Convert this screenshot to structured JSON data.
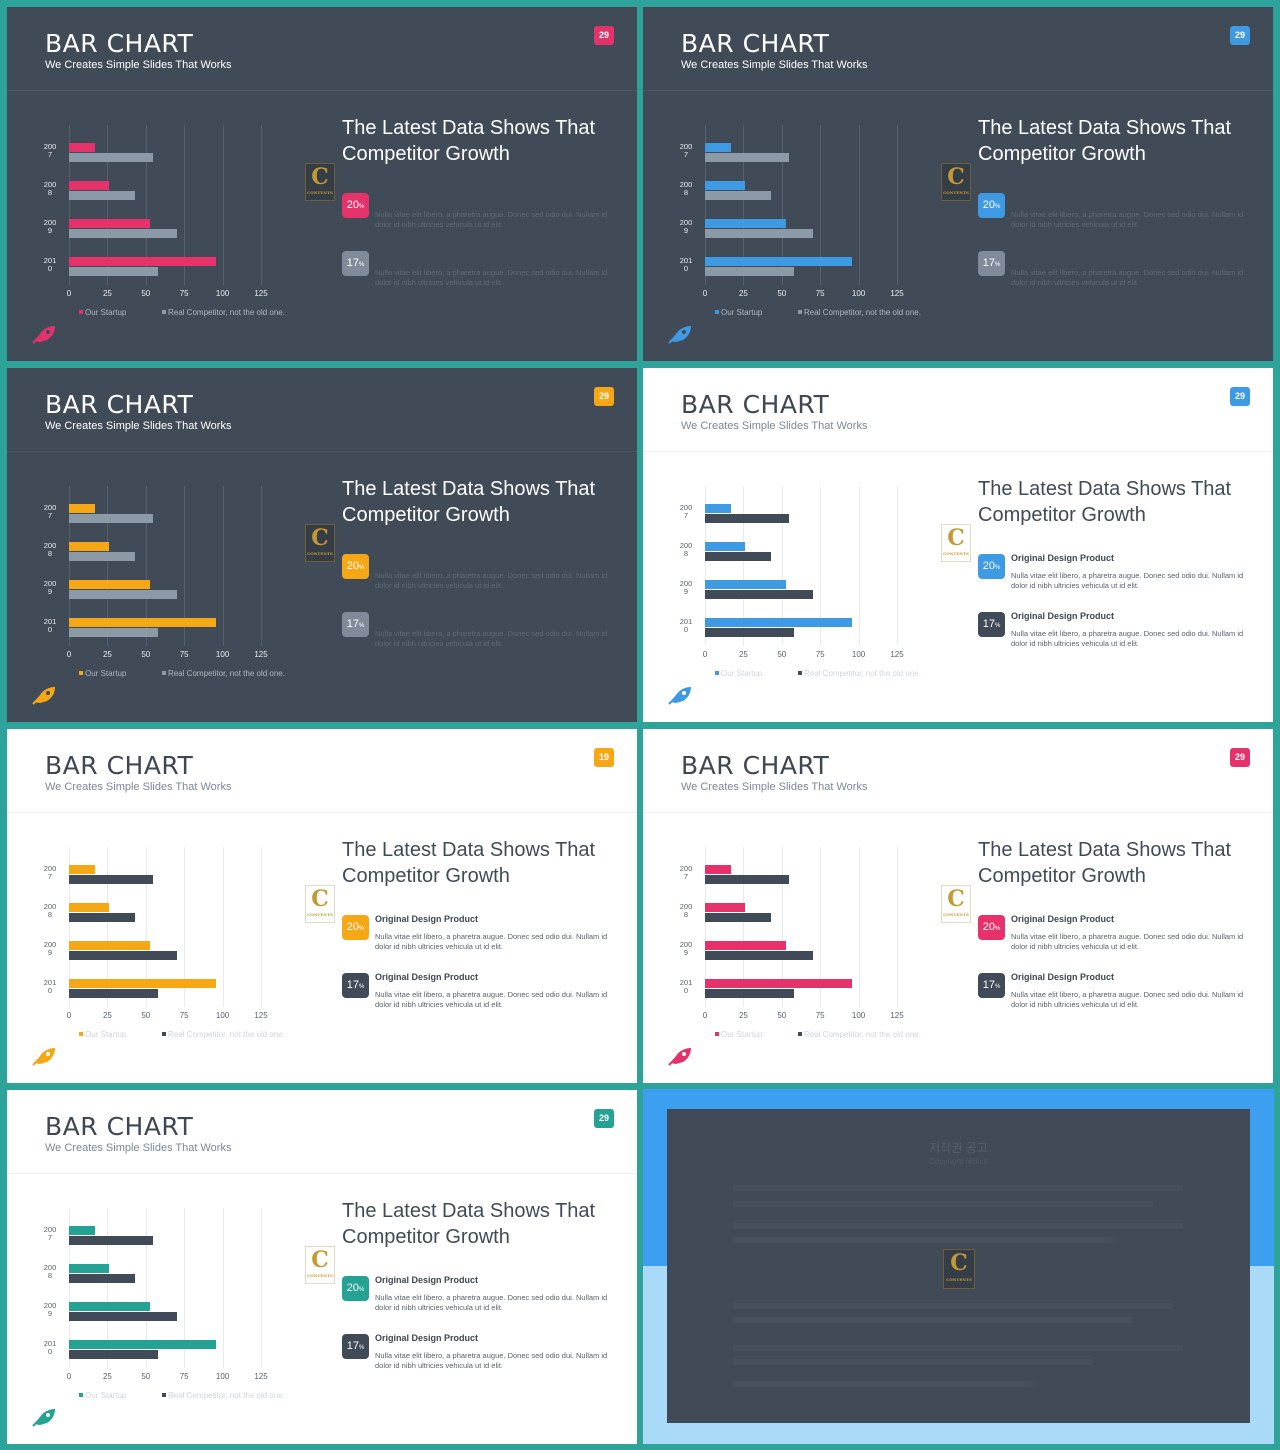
{
  "slides_common": {
    "title": "BAR CHART",
    "subtitle": "We Creates Simple Slides That Works",
    "heading": "The Latest Data Shows That Competitor Growth",
    "item_title": "Original Design Product",
    "item_text": "Nulla vitae elit libero, a pharetra augue. Donec sed odio dui. Nullam id dolor id nibh ultricies vehicula ut id elit.",
    "pct1": "20",
    "pct2": "17",
    "pct_unit": "%",
    "logo_letter": "C",
    "logo_text": "CONTENTS"
  },
  "slides": [
    {
      "theme": "dark",
      "accent": "#e5326b",
      "page": "29",
      "show_item_titles": false
    },
    {
      "theme": "dark",
      "accent": "#3d9ae3",
      "page": "29",
      "show_item_titles": false
    },
    {
      "theme": "dark",
      "accent": "#f6a716",
      "page": "29",
      "show_item_titles": false
    },
    {
      "theme": "light",
      "accent": "#3d9ae3",
      "page": "29",
      "show_item_titles": true
    },
    {
      "theme": "light",
      "accent": "#f6a716",
      "page": "19",
      "show_item_titles": true
    },
    {
      "theme": "light",
      "accent": "#e5326b",
      "page": "29",
      "show_item_titles": true
    },
    {
      "theme": "light",
      "accent": "#24a394",
      "page": "29",
      "show_item_titles": true
    }
  ],
  "chart_data": {
    "type": "bar",
    "orientation": "horizontal",
    "categories": [
      "2007",
      "2008",
      "2009",
      "2010"
    ],
    "category_labels": [
      [
        "200",
        "7"
      ],
      [
        "200",
        "8"
      ],
      [
        "200",
        "9"
      ],
      [
        "201",
        "0"
      ]
    ],
    "series": [
      {
        "name": "Our Startup",
        "values": [
          17,
          26,
          53,
          96
        ]
      },
      {
        "name": "Real Competitor, not the old one.",
        "values": [
          55,
          43,
          70,
          58
        ]
      }
    ],
    "xticks": [
      "0",
      "25",
      "50",
      "75",
      "100",
      "125"
    ],
    "xlim": [
      0,
      125
    ],
    "grid": true,
    "legend": "bottom"
  },
  "notice": {
    "title": "저작권 공고",
    "subtitle": "Copyright Notice"
  }
}
